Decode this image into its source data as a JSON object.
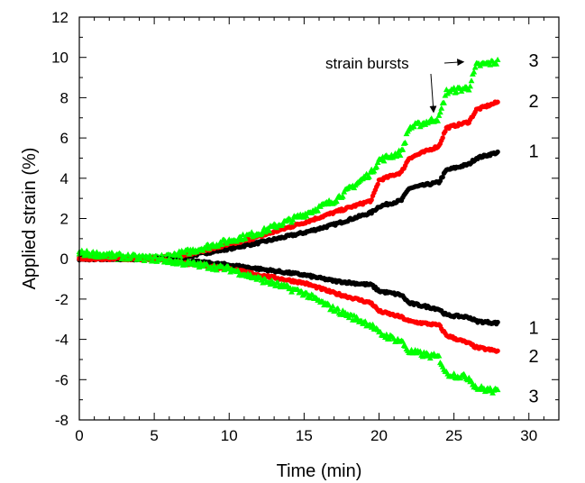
{
  "chart_data": {
    "type": "scatter",
    "title": "",
    "xlabel": "Time (min)",
    "ylabel": "Applied strain (%)",
    "xlim": [
      0,
      32
    ],
    "ylim": [
      -8,
      12
    ],
    "x_major_ticks": [
      0,
      5,
      10,
      15,
      20,
      25,
      30
    ],
    "y_major_ticks": [
      -8,
      -6,
      -4,
      -2,
      0,
      2,
      4,
      6,
      8,
      10,
      12
    ],
    "x_tick_labels": [
      "0",
      "5",
      "10",
      "15",
      "20",
      "25",
      "30"
    ],
    "y_tick_labels": [
      "-8",
      "-6",
      "-4",
      "-2",
      "0",
      "2",
      "4",
      "6",
      "8",
      "10",
      "12"
    ],
    "grid": false,
    "annotation": {
      "text": "strain bursts",
      "targets": [
        [
          24.0,
          7.1
        ],
        [
          26.0,
          9.6
        ]
      ]
    },
    "series": [
      {
        "label": "1",
        "branch": "upper",
        "color": "#000000",
        "marker": "circle",
        "points": [
          [
            0,
            0
          ],
          [
            5,
            0
          ],
          [
            7,
            0.1
          ],
          [
            10,
            0.5
          ],
          [
            12,
            0.8
          ],
          [
            15,
            1.3
          ],
          [
            17,
            1.7
          ],
          [
            19.5,
            2.3
          ],
          [
            20,
            2.6
          ],
          [
            21.5,
            2.9
          ],
          [
            22,
            3.5
          ],
          [
            24,
            3.8
          ],
          [
            24.5,
            4.4
          ],
          [
            26,
            4.7
          ],
          [
            26.5,
            5.0
          ],
          [
            28,
            5.3
          ]
        ]
      },
      {
        "label": "2",
        "branch": "upper",
        "color": "#ff0000",
        "marker": "circle",
        "points": [
          [
            0,
            0
          ],
          [
            5,
            0
          ],
          [
            7,
            0.2
          ],
          [
            10,
            0.7
          ],
          [
            12,
            1.1
          ],
          [
            15,
            1.8
          ],
          [
            17,
            2.3
          ],
          [
            19.5,
            2.9
          ],
          [
            20,
            3.9
          ],
          [
            21.5,
            4.3
          ],
          [
            22,
            5.0
          ],
          [
            24,
            5.6
          ],
          [
            24.5,
            6.5
          ],
          [
            26,
            6.8
          ],
          [
            26.5,
            7.4
          ],
          [
            28,
            7.8
          ]
        ]
      },
      {
        "label": "3",
        "branch": "upper",
        "color": "#00ff00",
        "marker": "triangle",
        "points": [
          [
            0,
            0.2
          ],
          [
            5,
            0
          ],
          [
            7,
            0.3
          ],
          [
            10,
            0.9
          ],
          [
            12,
            1.3
          ],
          [
            15,
            2.2
          ],
          [
            17,
            2.9
          ],
          [
            19.5,
            4.3
          ],
          [
            20,
            4.9
          ],
          [
            21.5,
            5.3
          ],
          [
            22,
            6.5
          ],
          [
            24,
            7.0
          ],
          [
            24.5,
            8.3
          ],
          [
            26,
            8.5
          ],
          [
            26.5,
            9.6
          ],
          [
            28,
            9.8
          ]
        ]
      },
      {
        "label": "1",
        "branch": "lower",
        "color": "#000000",
        "marker": "circle",
        "points": [
          [
            0,
            0
          ],
          [
            5,
            0
          ],
          [
            7,
            -0.1
          ],
          [
            10,
            -0.3
          ],
          [
            12,
            -0.5
          ],
          [
            15,
            -0.8
          ],
          [
            17,
            -1.1
          ],
          [
            19.5,
            -1.3
          ],
          [
            20,
            -1.6
          ],
          [
            21.5,
            -1.8
          ],
          [
            22,
            -2.2
          ],
          [
            24,
            -2.5
          ],
          [
            24.5,
            -2.8
          ],
          [
            26,
            -2.9
          ],
          [
            26.5,
            -3.1
          ],
          [
            28,
            -3.2
          ]
        ]
      },
      {
        "label": "2",
        "branch": "lower",
        "color": "#ff0000",
        "marker": "circle",
        "points": [
          [
            0,
            0
          ],
          [
            5,
            0
          ],
          [
            7,
            -0.2
          ],
          [
            10,
            -0.5
          ],
          [
            12,
            -0.8
          ],
          [
            15,
            -1.2
          ],
          [
            17,
            -1.7
          ],
          [
            19.5,
            -2.2
          ],
          [
            20,
            -2.6
          ],
          [
            21.5,
            -2.9
          ],
          [
            22,
            -3.1
          ],
          [
            24,
            -3.3
          ],
          [
            24.5,
            -3.8
          ],
          [
            26,
            -4.2
          ],
          [
            26.5,
            -4.4
          ],
          [
            28,
            -4.6
          ]
        ]
      },
      {
        "label": "3",
        "branch": "lower",
        "color": "#00ff00",
        "marker": "triangle",
        "points": [
          [
            0,
            0.3
          ],
          [
            5,
            0
          ],
          [
            7,
            -0.2
          ],
          [
            10,
            -0.5
          ],
          [
            12,
            -1.0
          ],
          [
            15,
            -1.7
          ],
          [
            17,
            -2.5
          ],
          [
            19.5,
            -3.3
          ],
          [
            20,
            -3.7
          ],
          [
            21.5,
            -4.1
          ],
          [
            22,
            -4.6
          ],
          [
            24,
            -4.9
          ],
          [
            24.5,
            -5.7
          ],
          [
            26,
            -5.9
          ],
          [
            26.5,
            -6.4
          ],
          [
            28,
            -6.6
          ]
        ]
      }
    ]
  }
}
